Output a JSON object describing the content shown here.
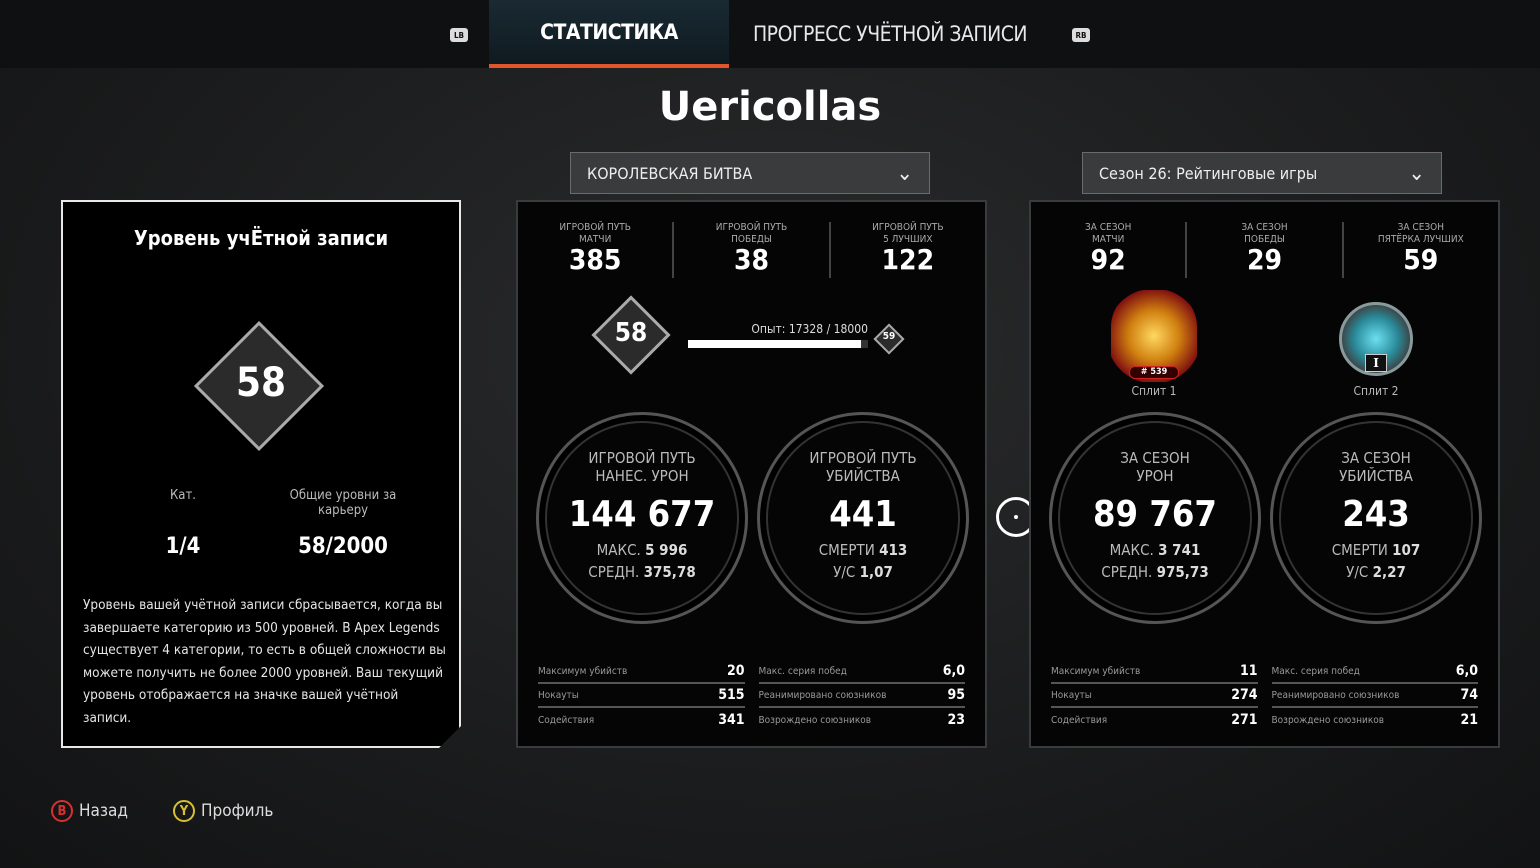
{
  "tabs": {
    "lb": "LB",
    "rb": "RB",
    "items": [
      {
        "label": "СТАТИСТИКА",
        "active": true
      },
      {
        "label": "ПРОГРЕСС УЧЁТНОЙ ЗАПИСИ",
        "active": false
      }
    ]
  },
  "player_name": "Uericollas",
  "dropdowns": {
    "mode": "КОРОЛЕВСКАЯ БИТВА",
    "season": "Сезон 26: Рейтинговые игры"
  },
  "account": {
    "title": "Уровень учЁтной записи",
    "level": "58",
    "cat_label": "Кат.",
    "cat_value": "1/4",
    "career_label": "Общие уровни за карьеру",
    "career_value": "58/2000",
    "description": "Уровень вашей учётной записи сбрасывается, когда вы завершаете категорию из 500 уровней. В Apex Legends существует 4 категории, то есть в общей сложности вы можете получить не более 2000 уровней. Ваш текущий уровень отображается на значке вашей учётной записи."
  },
  "career": {
    "top": [
      {
        "label": "ИГРОВОЙ ПУТЬ\nМАТЧИ",
        "value": "385"
      },
      {
        "label": "ИГРОВОЙ ПУТЬ\nПОБЕДЫ",
        "value": "38"
      },
      {
        "label": "ИГРОВОЙ ПУТЬ\n5 ЛУЧШИХ",
        "value": "122"
      }
    ],
    "level": "58",
    "next_level": "59",
    "xp_text": "Опыт: 17328 / 18000",
    "xp_progress": 0.963,
    "damage": {
      "label": "ИГРОВОЙ ПУТЬ\nНАНЕС. УРОН",
      "value": "144 677",
      "sub1_label": "МАКС.",
      "sub1": "5 996",
      "sub2_label": "СРЕДН.",
      "sub2": "375,78"
    },
    "kills": {
      "label": "ИГРОВОЙ ПУТЬ\nУБИЙСТВА",
      "value": "441",
      "sub1_label": "СМЕРТИ",
      "sub1": "413",
      "sub2_label": "У/С",
      "sub2": "1,07"
    },
    "rows_left": [
      {
        "label": "Максимум убийств",
        "value": "20"
      },
      {
        "label": "Нокауты",
        "value": "515"
      },
      {
        "label": "Содействия",
        "value": "341"
      }
    ],
    "rows_right": [
      {
        "label": "Макс. серия побед",
        "value": "6,0"
      },
      {
        "label": "Реанимировано союзников",
        "value": "95"
      },
      {
        "label": "Возрождено союзников",
        "value": "23"
      }
    ]
  },
  "season": {
    "top": [
      {
        "label": "ЗА СЕЗОН\nМАТЧИ",
        "value": "92"
      },
      {
        "label": "ЗА СЕЗОН\nПОБЕДЫ",
        "value": "29"
      },
      {
        "label": "ЗА СЕЗОН\nПЯТЁРКА ЛУЧШИХ",
        "value": "59"
      }
    ],
    "split1": {
      "label": "Сплит 1",
      "rank": "# 539",
      "tier": "predator",
      "color": "#e8a020"
    },
    "split2": {
      "label": "Сплит 2",
      "rank_numeral": "I",
      "tier": "diamond",
      "color": "#3fb6c8"
    },
    "damage": {
      "label": "ЗА СЕЗОН\nУРОН",
      "value": "89 767",
      "sub1_label": "МАКС.",
      "sub1": "3 741",
      "sub2_label": "СРЕДН.",
      "sub2": "975,73"
    },
    "kills": {
      "label": "ЗА СЕЗОН\nУБИЙСТВА",
      "value": "243",
      "sub1_label": "СМЕРТИ",
      "sub1": "107",
      "sub2_label": "У/С",
      "sub2": "2,27"
    },
    "rows_left": [
      {
        "label": "Максимум убийств",
        "value": "11"
      },
      {
        "label": "Нокауты",
        "value": "274"
      },
      {
        "label": "Содействия",
        "value": "271"
      }
    ],
    "rows_right": [
      {
        "label": "Макс. серия побед",
        "value": "6,0"
      },
      {
        "label": "Реанимировано союзников",
        "value": "74"
      },
      {
        "label": "Возрождено союзников",
        "value": "21"
      }
    ]
  },
  "footer": {
    "back_key": "B",
    "back": "Назад",
    "profile_key": "Y",
    "profile": "Профиль"
  },
  "colors": {
    "accent": "#e0562a",
    "back_key": "#d83030",
    "profile_key": "#d8c030"
  }
}
